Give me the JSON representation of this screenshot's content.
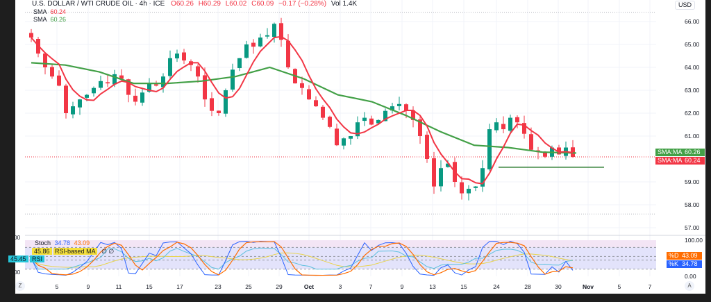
{
  "header": {
    "symbol": "U.S. DOLLAR / WTI CRUDE OIL · 4h · ICE",
    "open": "O60.26",
    "high": "H60.29",
    "low": "L60.02",
    "close": "C60.09",
    "change": "−0.17 (−0.28%)",
    "volume": "Vol 1.4K"
  },
  "legend": {
    "sma1_label": "SMA",
    "sma1_value": "60.24",
    "sma2_label": "SMA",
    "sma2_value": "60.26"
  },
  "price_axis": {
    "currency": "USD",
    "ticks": [
      "66.00",
      "65.00",
      "64.00",
      "63.00",
      "62.00",
      "61.00",
      "59.00",
      "58.00",
      "57.00"
    ],
    "badges": [
      {
        "label": "SMA:MA",
        "value": "60.26",
        "color": "#43a047"
      },
      {
        "label": "SMA:MA",
        "value": "60.24",
        "color": "#f23645"
      }
    ]
  },
  "indicator": {
    "stoch_label": "Stoch",
    "k_value": "34.78",
    "d_value": "43.09",
    "rsi_label": "RSI",
    "rsi_value": "45.45",
    "rsi_ma_label": "RSI-based MA",
    "rsi_ma_value": "45.86",
    "extra": "∅ ∅",
    "left_ticks": [
      "75.00",
      "25.00"
    ],
    "right_ticks": [
      "100.00",
      "0.00"
    ],
    "d_tag": "%D",
    "k_tag": "%K"
  },
  "time_axis": {
    "labels": [
      "5",
      "9",
      "11",
      "15",
      "17",
      "23",
      "25",
      "29",
      "Oct",
      "3",
      "7",
      "9",
      "13",
      "15",
      "24",
      "28",
      "30",
      "Nov",
      "5",
      "7"
    ],
    "z_button": "Z",
    "a_button": "A"
  },
  "colors": {
    "up": "#089981",
    "down": "#f23645",
    "sma_fast": "#f23645",
    "sma_slow": "#43a047",
    "rsi": "#5bc0de",
    "k": "#2962ff",
    "d": "#ff6d00",
    "rsi_ma": "#e8d44d"
  },
  "chart_data": {
    "type": "candlestick",
    "title": "U.S. DOLLAR / WTI CRUDE OIL · 4h",
    "ylabel": "USD",
    "ylim": [
      56.5,
      66.5
    ],
    "closes": [
      65.3,
      64.6,
      64.0,
      63.6,
      63.2,
      62.0,
      62.3,
      62.6,
      62.8,
      63.1,
      63.4,
      63.3,
      63.7,
      63.5,
      62.8,
      62.5,
      62.9,
      63.3,
      63.2,
      63.6,
      64.4,
      64.6,
      64.3,
      64.1,
      63.6,
      62.6,
      62.1,
      62.0,
      63.0,
      63.9,
      64.4,
      65.0,
      64.9,
      65.3,
      65.4,
      65.9,
      65.2,
      64.0,
      63.3,
      63.1,
      62.6,
      62.3,
      61.8,
      61.4,
      60.6,
      60.9,
      61.0,
      61.6,
      61.8,
      61.5,
      61.7,
      62.1,
      62.3,
      62.4,
      62.1,
      61.7,
      61.0,
      60.0,
      58.8,
      59.6,
      59.8,
      59.0,
      58.5,
      58.7,
      58.8,
      59.6,
      61.3,
      61.6,
      61.3,
      61.8,
      61.6,
      61.1,
      60.4,
      60.3,
      60.1,
      60.5,
      60.2,
      60.5,
      60.09
    ],
    "sma_slow": [
      64.2,
      64.1,
      63.8,
      63.3,
      63.3,
      63.4,
      63.6,
      64.0,
      63.5,
      62.8,
      62.5,
      61.9,
      61.2,
      60.6,
      60.5,
      60.3,
      60.26
    ],
    "sma_fast_period": 5,
    "support_level": 59.64,
    "last_price": 60.09,
    "low_marker": 57.6,
    "high_marker": 66.4
  }
}
